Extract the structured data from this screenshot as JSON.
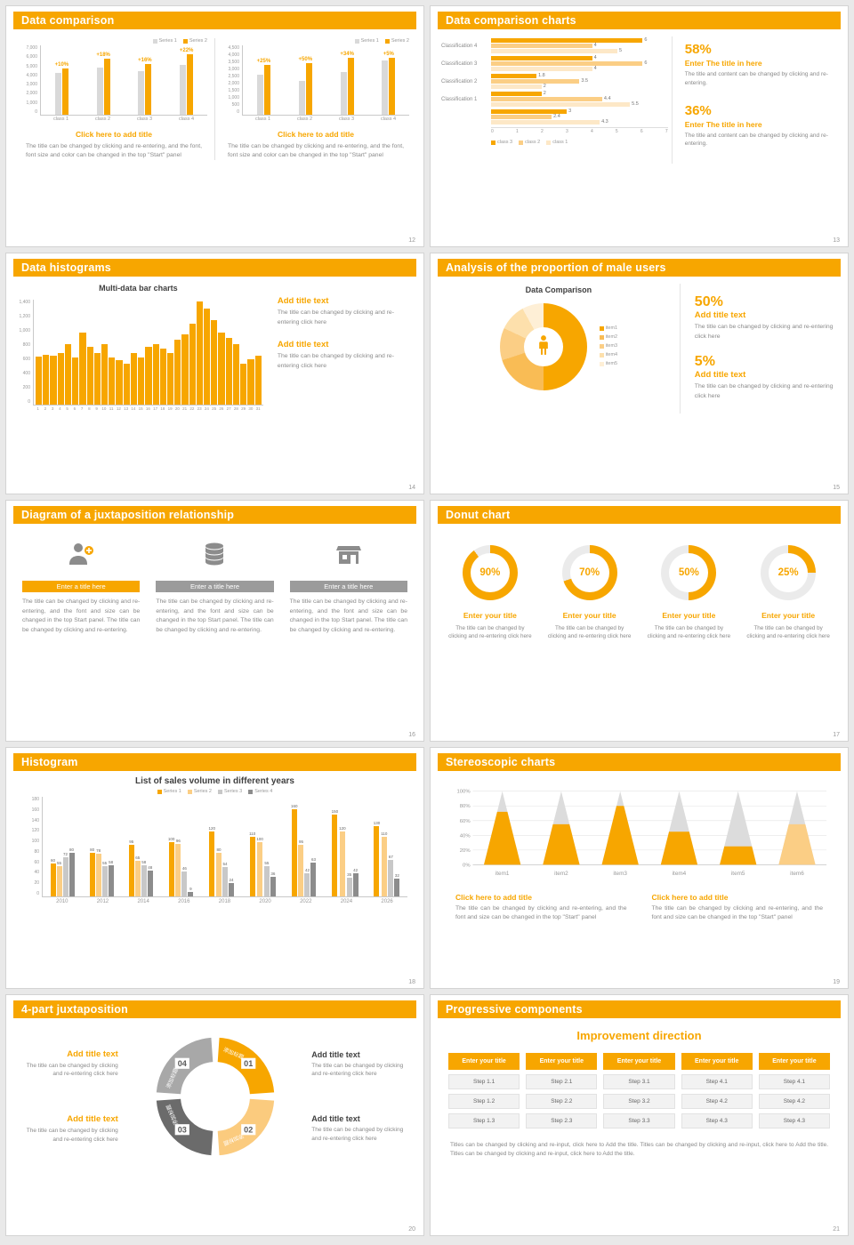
{
  "colors": {
    "accent": "#F7A600",
    "accent_light": "#FBCE85",
    "accent_pale": "#FDE8C7",
    "gray_bar": "#D9D9D9",
    "gray_dark": "#8C8C8C",
    "text_gray": "#8A8A8A"
  },
  "slides": {
    "s12": {
      "title": "Data comparison",
      "page": "12",
      "blocks": [
        {
          "subtitle": "Click here to add title",
          "body": "The title can be changed by clicking and re-entering, and the font, font size and color can be changed in the top \"Start\" panel"
        },
        {
          "subtitle": "Click here to add title",
          "body": "The title can be changed by clicking and re-entering, and the font, font size and color can be changed in the top \"Start\" panel"
        }
      ]
    },
    "s13": {
      "title": "Data comparison charts",
      "page": "13",
      "stats": [
        {
          "pct": "58%",
          "title": "Enter The title in here",
          "body": "The title and content can be changed by clicking and re-entering."
        },
        {
          "pct": "36%",
          "title": "Enter The title in here",
          "body": "The title and content can be changed by clicking and re-entering."
        }
      ]
    },
    "s14": {
      "title": "Data histograms",
      "page": "14",
      "blocks": [
        {
          "title": "Add title text",
          "body": "The title can be changed by clicking and re-entering click here"
        },
        {
          "title": "Add title text",
          "body": "The title can be changed by clicking and re-entering click here"
        }
      ]
    },
    "s15": {
      "title": "Analysis of the proportion of male users",
      "page": "15",
      "stats": [
        {
          "pct": "50%",
          "title": "Add title text",
          "body": "The title can be changed by clicking and re-entering click here"
        },
        {
          "pct": "5%",
          "title": "Add title text",
          "body": "The title can be changed by clicking and re-entering click here"
        }
      ]
    },
    "s16": {
      "title": "Diagram of a juxtaposition relationship",
      "page": "16",
      "columns": [
        {
          "bar": "Enter a title here",
          "body": "The title can be changed by clicking and re-entering, and the font and size can be changed in the top Start panel. The title can be changed by clicking and re-entering."
        },
        {
          "bar": "Enter a title here",
          "body": "The title can be changed by clicking and re-entering, and the font and size can be changed in the top Start panel. The title can be changed by clicking and re-entering."
        },
        {
          "bar": "Enter a title here",
          "body": "The title can be changed by clicking and re-entering, and the font and size can be changed in the top Start panel. The title can be changed by clicking and re-entering."
        }
      ]
    },
    "s17": {
      "title": "Donut chart",
      "page": "17",
      "items": [
        {
          "pct": "90%",
          "title": "Enter your title",
          "body": "The title can be changed by clicking and re-entering click here"
        },
        {
          "pct": "70%",
          "title": "Enter your title",
          "body": "The title can be changed by clicking and re-entering click here"
        },
        {
          "pct": "50%",
          "title": "Enter your title",
          "body": "The title can be changed by clicking and re-entering click here"
        },
        {
          "pct": "25%",
          "title": "Enter your title",
          "body": "The title can be changed by clicking and re-entering click here"
        }
      ]
    },
    "s18": {
      "title": "Histogram",
      "page": "18"
    },
    "s19": {
      "title": "Stereoscopic charts",
      "page": "19",
      "blocks": [
        {
          "title": "Click here to add title",
          "body": "The title can be changed by clicking and re-entering, and the font and size can be changed in the top \"Start\" panel"
        },
        {
          "title": "Click here to add title",
          "body": "The title can be changed by clicking and re-entering, and the font and size can be changed in the top \"Start\" panel"
        }
      ]
    },
    "s20": {
      "title": "4-part juxtaposition",
      "page": "20",
      "left": [
        {
          "title": "Add title text",
          "body": "The title can be changed by clicking and re-entering click here"
        },
        {
          "title": "Add title text",
          "body": "The title can be changed by clicking and re-entering click here"
        }
      ],
      "right": [
        {
          "title": "Add title text",
          "body": "The title can be changed by clicking and re-entering click here"
        },
        {
          "title": "Add title text",
          "body": "The title can be changed by clicking and re-entering click here"
        }
      ]
    },
    "s21": {
      "title": "Progressive components",
      "page": "21",
      "heading": "Improvement direction",
      "button": "Enter your title",
      "columns": [
        [
          "Step 1.1",
          "Step 1.2",
          "Step 1.3"
        ],
        [
          "Step 2.1",
          "Step 2.2",
          "Step 2.3"
        ],
        [
          "Step 3.1",
          "Step 3.2",
          "Step 3.3"
        ],
        [
          "Step 4.1",
          "Step 4.2",
          "Step 4.3"
        ],
        [
          "Step 4.1",
          "Step 4.2",
          "Step 4.3"
        ]
      ],
      "footer": "Titles can be changed by clicking and re-input, click here to Add the title. Titles can be changed by clicking and re-input, click here to Add the title. Titles can be changed by clicking and re-input, click here to Add the title."
    }
  },
  "chart_data": [
    {
      "id": "s12-left",
      "type": "bar",
      "categories": [
        "class 1",
        "class 2",
        "class 3",
        "class 4"
      ],
      "series": [
        {
          "name": "Series 1",
          "color": "#D9D9D9",
          "values": [
            4600,
            5200,
            4800,
            5400
          ]
        },
        {
          "name": "Series 2",
          "color": "#F7A600",
          "values": [
            5060,
            6140,
            5570,
            6590
          ]
        }
      ],
      "bar_labels": [
        "+10%",
        "+18%",
        "+16%",
        "+22%"
      ],
      "ylim": [
        0,
        7000
      ],
      "yticks": [
        "7,000",
        "6,000",
        "5,000",
        "4,000",
        "3,000",
        "2,000",
        "1,000",
        "0"
      ]
    },
    {
      "id": "s12-right",
      "type": "bar",
      "categories": [
        "class 1",
        "class 2",
        "class 3",
        "class 4"
      ],
      "series": [
        {
          "name": "Series 1",
          "color": "#D9D9D9",
          "values": [
            2800,
            2400,
            3000,
            3800
          ]
        },
        {
          "name": "Series 2",
          "color": "#F7A600",
          "values": [
            3500,
            3600,
            4020,
            3990
          ]
        }
      ],
      "bar_labels": [
        "+25%",
        "+50%",
        "+34%",
        "+5%"
      ],
      "ylim": [
        0,
        4500
      ],
      "yticks": [
        "4,500",
        "4,000",
        "3,500",
        "3,000",
        "2,500",
        "2,000",
        "1,500",
        "1,000",
        "500",
        "0"
      ]
    },
    {
      "id": "s13",
      "type": "bar",
      "orientation": "horizontal",
      "legend": [
        "class 3",
        "class 2",
        "class 1"
      ],
      "legend_colors": [
        "#F7A600",
        "#FBCE85",
        "#FDE8C7"
      ],
      "groups": [
        {
          "label": "Classification 4",
          "values": [
            6,
            4,
            5
          ]
        },
        {
          "label": "Classification 3",
          "values": [
            4,
            6,
            4
          ]
        },
        {
          "label": "Classification 2",
          "values": [
            1.8,
            3.5,
            2
          ]
        },
        {
          "label": "Classification 1",
          "values": [
            2,
            4.4,
            5.5
          ]
        },
        {
          "label": "",
          "values": [
            3,
            2.4,
            4.3
          ]
        }
      ],
      "xlim": [
        0,
        7
      ],
      "xticks": [
        "0",
        "1",
        "2",
        "3",
        "4",
        "5",
        "6",
        "7"
      ]
    },
    {
      "id": "s14",
      "type": "bar",
      "title": "Multi-data bar charts",
      "x": [
        "1",
        "2",
        "3",
        "4",
        "5",
        "6",
        "7",
        "8",
        "9",
        "10",
        "11",
        "12",
        "13",
        "14",
        "15",
        "16",
        "17",
        "18",
        "19",
        "20",
        "21",
        "22",
        "23",
        "24",
        "25",
        "26",
        "27",
        "28",
        "29",
        "30",
        "31"
      ],
      "values": [
        650,
        680,
        660,
        700,
        820,
        640,
        980,
        780,
        700,
        820,
        640,
        600,
        560,
        700,
        640,
        780,
        820,
        760,
        700,
        880,
        950,
        1100,
        1400,
        1300,
        1150,
        980,
        900,
        820,
        560,
        620,
        660
      ],
      "color": "#F7A600",
      "ylim": [
        0,
        1400
      ],
      "yticks": [
        "1,400",
        "1,200",
        "1,000",
        "800",
        "600",
        "400",
        "200",
        "0"
      ]
    },
    {
      "id": "s15",
      "type": "pie",
      "variant": "donut",
      "title": "Data Comparison",
      "labels": [
        "item1",
        "item2",
        "item3",
        "item4",
        "item5"
      ],
      "values": [
        50,
        20,
        12,
        10,
        8
      ],
      "colors": [
        "#F7A600",
        "#F9BC55",
        "#FBCE85",
        "#FDE0AC",
        "#FEEFD6"
      ]
    },
    {
      "id": "s17",
      "type": "pie",
      "variant": "donut-gauges",
      "labels": [
        "90%",
        "70%",
        "50%",
        "25%"
      ],
      "values": [
        90,
        70,
        50,
        25
      ]
    },
    {
      "id": "s18",
      "type": "bar",
      "title": "List of sales volume in different years",
      "categories": [
        "2010",
        "2012",
        "2014",
        "2016",
        "2018",
        "2020",
        "2022",
        "2024",
        "2026"
      ],
      "series": [
        {
          "name": "Series 1",
          "color": "#F7A600",
          "values": [
            60,
            80,
            95,
            100,
            120,
            110,
            160,
            150,
            130
          ]
        },
        {
          "name": "Series 2",
          "color": "#FBCE85",
          "values": [
            55,
            78,
            65,
            96,
            80,
            100,
            95,
            120,
            110
          ]
        },
        {
          "name": "Series 3",
          "color": "#C8C8C8",
          "values": [
            72,
            55,
            58,
            46,
            54,
            55,
            42,
            35,
            67
          ]
        },
        {
          "name": "Series 4",
          "color": "#8C8C8C",
          "values": [
            80,
            58,
            48,
            9,
            24,
            36,
            63,
            42,
            32
          ]
        }
      ],
      "ylim": [
        0,
        180
      ],
      "yticks": [
        "180",
        "160",
        "140",
        "120",
        "100",
        "80",
        "60",
        "40",
        "20",
        "0"
      ]
    },
    {
      "id": "s19",
      "type": "area",
      "variant": "cones",
      "categories": [
        "item1",
        "item2",
        "item3",
        "item4",
        "item5",
        "item6"
      ],
      "values": [
        72,
        55,
        80,
        45,
        25,
        55
      ],
      "colors": [
        "#F7A600",
        "#F7A600",
        "#F7A600",
        "#F7A600",
        "#F7A600",
        "#FBCE85"
      ],
      "yticks": [
        "100%",
        "80%",
        "60%",
        "40%",
        "20%",
        "0%"
      ]
    },
    {
      "id": "s20",
      "type": "pie",
      "variant": "quad-ring",
      "segments": [
        {
          "num": "01",
          "label": "添加标题",
          "color": "#F7A600"
        },
        {
          "num": "02",
          "label": "添加标题",
          "color": "#FBCB7E"
        },
        {
          "num": "03",
          "label": "添加标题",
          "color": "#6B6B6B"
        },
        {
          "num": "04",
          "label": "添加标题",
          "color": "#A8A8A8"
        }
      ]
    }
  ]
}
